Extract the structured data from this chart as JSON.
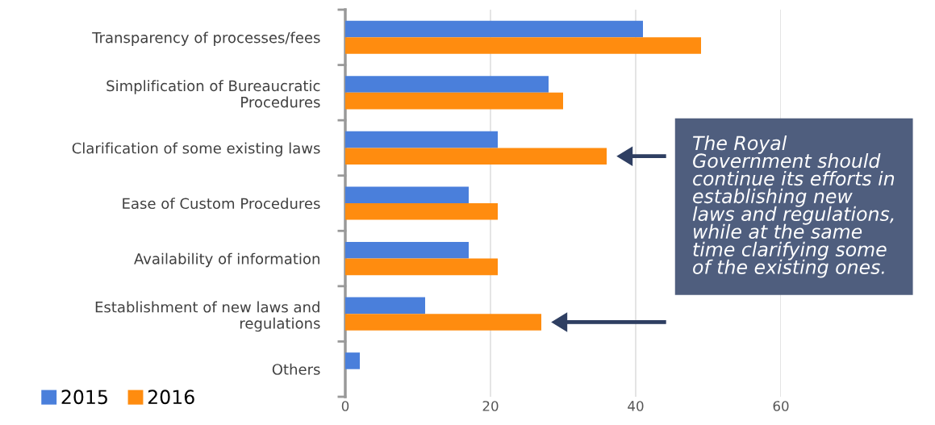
{
  "chart_data": {
    "type": "bar",
    "orientation": "horizontal",
    "categories": [
      "Transparency of processes/fees",
      "Simplification of Bureaucratic\nProcedures",
      "Clarification of some existing laws",
      "Ease of Custom Procedures",
      "Availability of information",
      "Establishment of new laws and\nregulations",
      "Others"
    ],
    "series": [
      {
        "name": "2015",
        "color": "#4a7fdb",
        "values": [
          41,
          28,
          21,
          17,
          17,
          11,
          2
        ]
      },
      {
        "name": "2016",
        "color": "#ff8c0f",
        "values": [
          49,
          30,
          36,
          21,
          21,
          27,
          null
        ]
      }
    ],
    "xlim": [
      0,
      60
    ],
    "xticks": [
      0,
      20,
      40,
      60
    ],
    "grid": "x",
    "legend": "bottom left",
    "annotations": [
      {
        "text": "The Royal Government should continue its efforts in establishing new laws and regulations, while at the same time clarifying some of the existing ones."
      }
    ]
  }
}
